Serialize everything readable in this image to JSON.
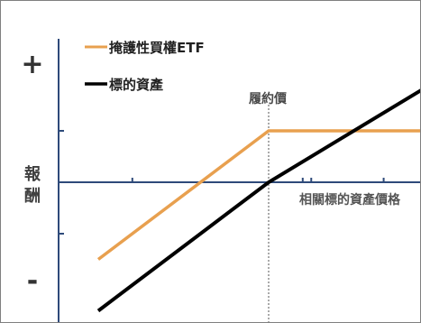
{
  "chart_data": {
    "type": "line",
    "y_axis": {
      "plus_label": "+",
      "minus_label": "-",
      "title_lines": [
        "報",
        "酬"
      ]
    },
    "xlabel": "相關標的資產價格",
    "strike_label": "履約價",
    "grid": false,
    "legend_position": "top-left",
    "x": [
      0,
      2,
      4,
      5
    ],
    "series": [
      {
        "name": "掩護性買權ETF",
        "color": "#e8a04f",
        "values": [
          -1.5,
          1,
          1,
          1
        ]
      },
      {
        "name": "標的資產",
        "color": "#000000",
        "values": [
          -2.5,
          0,
          2,
          3
        ]
      }
    ],
    "colors": {
      "axis": "#2e4a7a",
      "strike_line": "#555555",
      "label_text": "#404040"
    }
  }
}
